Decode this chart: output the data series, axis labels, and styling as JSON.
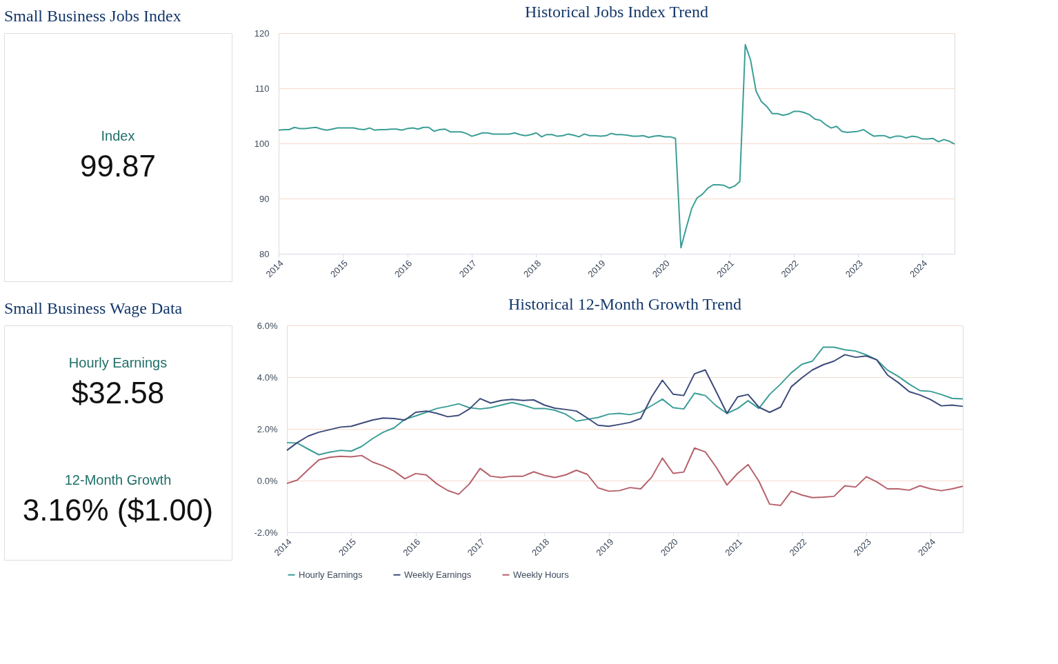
{
  "chart_data": [
    {
      "type": "other",
      "title": "Small Business Jobs Index",
      "annotations": [
        "Index",
        "99.87"
      ]
    },
    {
      "type": "line",
      "title": "Historical Jobs Index Trend",
      "color": "#3a9e96",
      "x": [
        "2014-01",
        "2014-02",
        "2014-03",
        "2014-04",
        "2014-05",
        "2014-06",
        "2014-07",
        "2014-08",
        "2014-09",
        "2014-10",
        "2014-11",
        "2014-12",
        "2015-01",
        "2015-02",
        "2015-03",
        "2015-04",
        "2015-05",
        "2015-06",
        "2015-07",
        "2015-08",
        "2015-09",
        "2015-10",
        "2015-11",
        "2015-12",
        "2016-01",
        "2016-02",
        "2016-03",
        "2016-04",
        "2016-05",
        "2016-06",
        "2016-07",
        "2016-08",
        "2016-09",
        "2016-10",
        "2016-11",
        "2016-12",
        "2017-01",
        "2017-02",
        "2017-03",
        "2017-04",
        "2017-05",
        "2017-06",
        "2017-07",
        "2017-08",
        "2017-09",
        "2017-10",
        "2017-11",
        "2017-12",
        "2018-01",
        "2018-02",
        "2018-03",
        "2018-04",
        "2018-05",
        "2018-06",
        "2018-07",
        "2018-08",
        "2018-09",
        "2018-10",
        "2018-11",
        "2018-12",
        "2019-01",
        "2019-02",
        "2019-03",
        "2019-04",
        "2019-05",
        "2019-06",
        "2019-07",
        "2019-08",
        "2019-09",
        "2019-10",
        "2019-11",
        "2019-12",
        "2020-01",
        "2020-02",
        "2020-03",
        "2020-04",
        "2020-05",
        "2020-06",
        "2020-07",
        "2020-08",
        "2020-09",
        "2020-10",
        "2020-11",
        "2020-12",
        "2021-01",
        "2021-02",
        "2021-03",
        "2021-04",
        "2021-05",
        "2021-06",
        "2021-07",
        "2021-08",
        "2021-09",
        "2021-10",
        "2021-11",
        "2021-12",
        "2022-01",
        "2022-02",
        "2022-03",
        "2022-04",
        "2022-05",
        "2022-06",
        "2022-07",
        "2022-08",
        "2022-09",
        "2022-10",
        "2022-11",
        "2022-12",
        "2023-01",
        "2023-02",
        "2023-03",
        "2023-04",
        "2023-05",
        "2023-06",
        "2023-07",
        "2023-08",
        "2023-09",
        "2023-10",
        "2023-11",
        "2023-12",
        "2024-01",
        "2024-02",
        "2024-03",
        "2024-04",
        "2024-05",
        "2024-06",
        "2024-07"
      ],
      "values": [
        102.4,
        102.5,
        102.5,
        102.9,
        102.7,
        102.7,
        102.8,
        102.9,
        102.6,
        102.4,
        102.6,
        102.8,
        102.8,
        102.8,
        102.8,
        102.6,
        102.5,
        102.8,
        102.4,
        102.5,
        102.5,
        102.6,
        102.6,
        102.4,
        102.7,
        102.8,
        102.6,
        102.9,
        102.9,
        102.2,
        102.5,
        102.6,
        102.1,
        102.1,
        102.1,
        101.8,
        101.3,
        101.6,
        101.9,
        101.9,
        101.7,
        101.7,
        101.7,
        101.7,
        101.9,
        101.6,
        101.4,
        101.6,
        101.9,
        101.2,
        101.6,
        101.6,
        101.3,
        101.4,
        101.7,
        101.5,
        101.2,
        101.7,
        101.4,
        101.4,
        101.3,
        101.4,
        101.8,
        101.6,
        101.6,
        101.5,
        101.3,
        101.3,
        101.4,
        101.1,
        101.3,
        101.4,
        101.2,
        101.2,
        100.9,
        81.1,
        84.7,
        88.2,
        90.1,
        90.8,
        91.9,
        92.5,
        92.5,
        92.4,
        91.9,
        92.3,
        93.1,
        117.9,
        115.1,
        109.5,
        107.6,
        106.7,
        105.4,
        105.4,
        105.1,
        105.3,
        105.8,
        105.8,
        105.6,
        105.2,
        104.4,
        104.2,
        103.4,
        102.8,
        103.1,
        102.2,
        102.0,
        102.1,
        102.2,
        102.5,
        101.9,
        101.3,
        101.4,
        101.4,
        101.0,
        101.3,
        101.3,
        101.0,
        101.3,
        101.2,
        100.8,
        100.8,
        100.9,
        100.3,
        100.7,
        100.4,
        99.9
      ],
      "xlim": [
        "2014-01",
        "2024-07"
      ],
      "xticks": [
        "2014",
        "2015",
        "2016",
        "2017",
        "2018",
        "2019",
        "2020",
        "2021",
        "2022",
        "2023",
        "2024"
      ],
      "ylim": [
        80,
        120
      ],
      "yticks": [
        80,
        90,
        100,
        110,
        120
      ],
      "grid": "y"
    },
    {
      "type": "other",
      "title": "Small Business Wage Data",
      "annotations": [
        "Hourly Earnings",
        "$32.58",
        "12-Month Growth",
        "3.16% ($1.00)"
      ]
    },
    {
      "type": "line",
      "title": "Historical 12-Month Growth Trend",
      "x": [
        "2014-01",
        "2014-03",
        "2014-05",
        "2014-07",
        "2014-09",
        "2014-11",
        "2015-01",
        "2015-03",
        "2015-05",
        "2015-07",
        "2015-09",
        "2015-11",
        "2016-01",
        "2016-03",
        "2016-05",
        "2016-07",
        "2016-09",
        "2016-11",
        "2017-01",
        "2017-03",
        "2017-05",
        "2017-07",
        "2017-09",
        "2017-11",
        "2018-01",
        "2018-03",
        "2018-05",
        "2018-07",
        "2018-09",
        "2018-11",
        "2019-01",
        "2019-03",
        "2019-05",
        "2019-07",
        "2019-09",
        "2019-11",
        "2020-01",
        "2020-03",
        "2020-05",
        "2020-07",
        "2020-09",
        "2020-11",
        "2021-01",
        "2021-03",
        "2021-05",
        "2021-07",
        "2021-09",
        "2021-11",
        "2022-01",
        "2022-03",
        "2022-05",
        "2022-07",
        "2022-09",
        "2022-11",
        "2023-01",
        "2023-03",
        "2023-05",
        "2023-07",
        "2023-09",
        "2023-11",
        "2024-01",
        "2024-03",
        "2024-05",
        "2024-07"
      ],
      "series": [
        {
          "name": "Hourly Earnings",
          "color": "#3a9e96",
          "values": [
            1.47,
            1.45,
            1.22,
            1.0,
            1.1,
            1.17,
            1.14,
            1.32,
            1.62,
            1.87,
            2.04,
            2.37,
            2.5,
            2.64,
            2.79,
            2.87,
            2.97,
            2.82,
            2.77,
            2.82,
            2.92,
            3.02,
            2.92,
            2.79,
            2.79,
            2.72,
            2.57,
            2.3,
            2.37,
            2.44,
            2.57,
            2.6,
            2.55,
            2.65,
            2.9,
            3.15,
            2.82,
            2.77,
            3.38,
            3.29,
            2.89,
            2.6,
            2.79,
            3.09,
            2.79,
            3.33,
            3.73,
            4.17,
            4.5,
            4.62,
            5.16,
            5.16,
            5.06,
            5.01,
            4.86,
            4.67,
            4.27,
            4.03,
            3.73,
            3.48,
            3.45,
            3.33,
            3.18,
            3.16
          ]
        },
        {
          "name": "Weekly Earnings",
          "color": "#3b4a7a",
          "values": [
            1.17,
            1.47,
            1.72,
            1.87,
            1.97,
            2.07,
            2.1,
            2.22,
            2.34,
            2.42,
            2.4,
            2.34,
            2.64,
            2.69,
            2.6,
            2.47,
            2.52,
            2.77,
            3.17,
            3.0,
            3.1,
            3.14,
            3.1,
            3.12,
            2.92,
            2.8,
            2.75,
            2.69,
            2.42,
            2.14,
            2.1,
            2.17,
            2.25,
            2.4,
            3.24,
            3.88,
            3.34,
            3.29,
            4.13,
            4.28,
            3.44,
            2.6,
            3.24,
            3.33,
            2.84,
            2.64,
            2.84,
            3.63,
            3.98,
            4.28,
            4.48,
            4.62,
            4.87,
            4.77,
            4.82,
            4.67,
            4.08,
            3.79,
            3.44,
            3.31,
            3.13,
            2.89,
            2.92,
            2.87
          ]
        },
        {
          "name": "Weekly Hours",
          "color": "#b5616b",
          "values": [
            -0.11,
            0.02,
            0.42,
            0.8,
            0.9,
            0.94,
            0.92,
            0.97,
            0.72,
            0.57,
            0.37,
            0.07,
            0.27,
            0.22,
            -0.13,
            -0.38,
            -0.53,
            -0.13,
            0.47,
            0.17,
            0.12,
            0.17,
            0.17,
            0.34,
            0.2,
            0.12,
            0.22,
            0.4,
            0.24,
            -0.28,
            -0.41,
            -0.39,
            -0.27,
            -0.32,
            0.13,
            0.87,
            0.28,
            0.33,
            1.26,
            1.11,
            0.52,
            -0.17,
            0.28,
            0.62,
            -0.02,
            -0.91,
            -0.96,
            -0.41,
            -0.56,
            -0.66,
            -0.64,
            -0.61,
            -0.2,
            -0.25,
            0.15,
            -0.05,
            -0.32,
            -0.32,
            -0.37,
            -0.2,
            -0.32,
            -0.39,
            -0.32,
            -0.22
          ]
        }
      ],
      "xlim": [
        "2014-01",
        "2024-07"
      ],
      "xticks": [
        "2014",
        "2015",
        "2016",
        "2017",
        "2018",
        "2019",
        "2020",
        "2021",
        "2022",
        "2023",
        "2024"
      ],
      "ylim": [
        -2,
        6
      ],
      "yticks": [
        {
          "value": -2,
          "label": "-2.0%"
        },
        {
          "value": 0,
          "label": "0.0%"
        },
        {
          "value": 2,
          "label": "2.0%"
        },
        {
          "value": 4,
          "label": "4.0%"
        },
        {
          "value": 6,
          "label": "6.0%"
        }
      ],
      "grid": "y",
      "legend": "bottom"
    }
  ]
}
